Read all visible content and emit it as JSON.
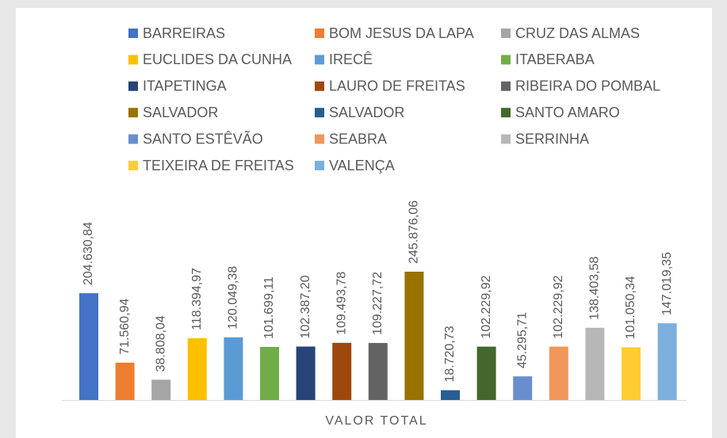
{
  "chart_data": {
    "type": "bar",
    "categories": [
      "VALOR TOTAL"
    ],
    "series": [
      {
        "name": "BARREIRAS",
        "color": "#4472c4",
        "values": [
          204630.84
        ],
        "value_labels": [
          "204.630,84"
        ]
      },
      {
        "name": "BOM JESUS DA LAPA",
        "color": "#ed7d31",
        "values": [
          71560.94
        ],
        "value_labels": [
          "71.560,94"
        ]
      },
      {
        "name": "CRUZ DAS ALMAS",
        "color": "#a5a5a5",
        "values": [
          38808.04
        ],
        "value_labels": [
          "38.808,04"
        ]
      },
      {
        "name": "EUCLIDES DA CUNHA",
        "color": "#ffc000",
        "values": [
          118394.97
        ],
        "value_labels": [
          "118.394,97"
        ]
      },
      {
        "name": "IRECÊ",
        "color": "#5b9bd5",
        "values": [
          120049.38
        ],
        "value_labels": [
          "120.049,38"
        ]
      },
      {
        "name": "ITABERABA",
        "color": "#70ad47",
        "values": [
          101699.11
        ],
        "value_labels": [
          "101.699,11"
        ]
      },
      {
        "name": "ITAPETINGA",
        "color": "#264478",
        "values": [
          102387.2
        ],
        "value_labels": [
          "102.387,20"
        ]
      },
      {
        "name": "LAURO DE FREITAS",
        "color": "#9e480e",
        "values": [
          109493.78
        ],
        "value_labels": [
          "109.493,78"
        ]
      },
      {
        "name": "RIBEIRA DO POMBAL",
        "color": "#636363",
        "values": [
          109227.72
        ],
        "value_labels": [
          "109.227,72"
        ]
      },
      {
        "name": "SALVADOR",
        "color": "#997300",
        "values": [
          245876.06
        ],
        "value_labels": [
          "245.876,06"
        ]
      },
      {
        "name": "SALVADOR",
        "color": "#255e91",
        "values": [
          18720.73
        ],
        "value_labels": [
          "18.720,73"
        ]
      },
      {
        "name": "SANTO AMARO",
        "color": "#43682b",
        "values": [
          102229.92
        ],
        "value_labels": [
          "102.229,92"
        ]
      },
      {
        "name": "SANTO ESTÊVÃO",
        "color": "#698ed0",
        "values": [
          45295.71
        ],
        "value_labels": [
          "45.295,71"
        ]
      },
      {
        "name": "SEABRA",
        "color": "#f1975a",
        "values": [
          102229.92
        ],
        "value_labels": [
          "102.229,92"
        ]
      },
      {
        "name": "SERRINHA",
        "color": "#b7b7b7",
        "values": [
          138403.58
        ],
        "value_labels": [
          "138.403,58"
        ]
      },
      {
        "name": "TEIXEIRA DE FREITAS",
        "color": "#ffcd33",
        "values": [
          101050.34
        ],
        "value_labels": [
          "101.050,34"
        ]
      },
      {
        "name": "VALENÇA",
        "color": "#7cafdd",
        "values": [
          147019.35
        ],
        "value_labels": [
          "147.019,35"
        ]
      }
    ]
  }
}
